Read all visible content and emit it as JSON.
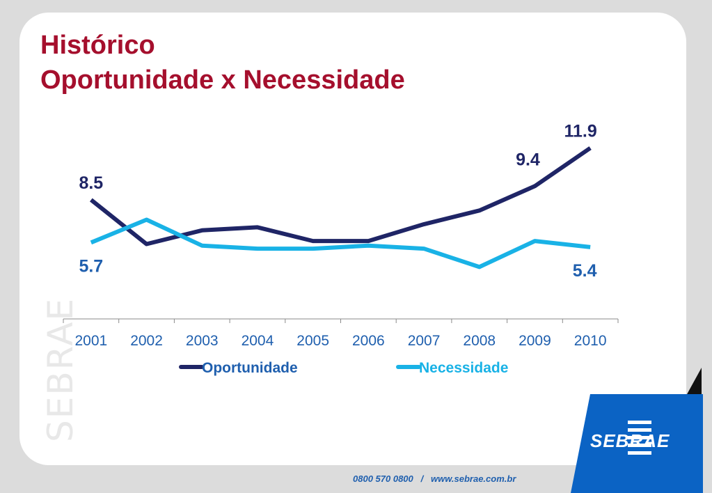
{
  "title": {
    "line1": "Histórico",
    "line2": "Oportunidade x Necessidade"
  },
  "watermark": "SEBRAE",
  "footer": {
    "text": "0800 570 0800   /   www.sebrae.com.br"
  },
  "logo": {
    "text": "SEBRAE"
  },
  "colors": {
    "title": "#a50f2d",
    "oportunidade": "#1f2566",
    "necessidade": "#19b2e6",
    "axis_text": "#1f5fae",
    "brand_blue": "#0b63c4"
  },
  "chart_data": {
    "type": "line",
    "categories": [
      "2001",
      "2002",
      "2003",
      "2004",
      "2005",
      "2006",
      "2007",
      "2008",
      "2009",
      "2010"
    ],
    "series": [
      {
        "name": "Oportunidade",
        "color": "#1f2566",
        "values": [
          8.5,
          5.6,
          6.5,
          6.7,
          5.8,
          5.8,
          6.9,
          7.8,
          9.4,
          11.9
        ],
        "labels": [
          {
            "index": 0,
            "text": "8.5"
          },
          {
            "index": 8,
            "text": "9.4"
          },
          {
            "index": 9,
            "text": "11.9"
          }
        ]
      },
      {
        "name": "Necessidade",
        "color": "#19b2e6",
        "values": [
          5.7,
          7.2,
          5.5,
          5.3,
          5.3,
          5.5,
          5.3,
          4.1,
          5.8,
          5.4
        ],
        "labels": [
          {
            "index": 0,
            "text": "5.7"
          },
          {
            "index": 9,
            "text": "5.4"
          }
        ]
      }
    ],
    "legend_position": "bottom",
    "grid": false
  }
}
